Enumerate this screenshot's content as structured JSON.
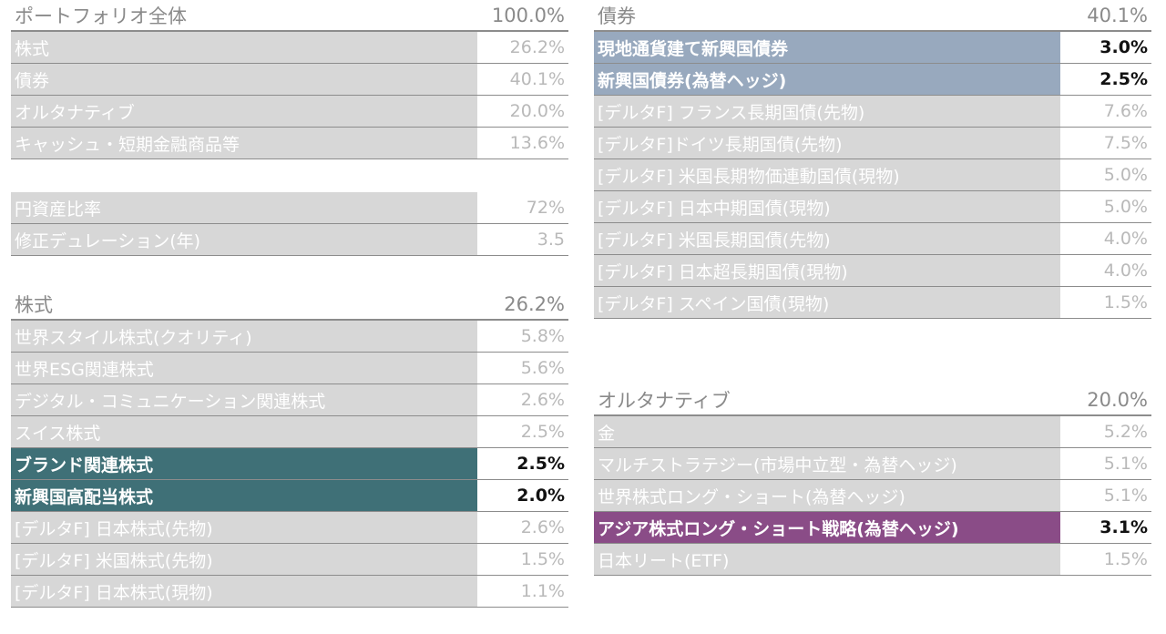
{
  "left": {
    "portfolio": {
      "title": "ポートフォリオ全体",
      "total": "100.0%",
      "rows": [
        {
          "label": "株式",
          "value": "26.2%"
        },
        {
          "label": "債券",
          "value": "40.1%"
        },
        {
          "label": "オルタナティブ",
          "value": "20.0%"
        },
        {
          "label": "キャッシュ・短期金融商品等",
          "value": "13.6%"
        }
      ]
    },
    "metrics": {
      "rows": [
        {
          "label": "円資産比率",
          "value": "72%"
        },
        {
          "label": "修正デュレーション(年)",
          "value": "3.5"
        }
      ]
    },
    "equity": {
      "title": "株式",
      "total": "26.2%",
      "rows": [
        {
          "label": "世界スタイル株式(クオリティ)",
          "value": "5.8%"
        },
        {
          "label": "世界ESG関連株式",
          "value": "5.6%"
        },
        {
          "label": "デジタル・コミュニケーション関連株式",
          "value": "2.6%"
        },
        {
          "label": "スイス株式",
          "value": "2.5%"
        },
        {
          "label": "ブランド関連株式",
          "value": "2.5%"
        },
        {
          "label": "新興国高配当株式",
          "value": "2.0%"
        },
        {
          "label": "[デルタF] 日本株式(先物)",
          "value": "2.6%"
        },
        {
          "label": "[デルタF] 米国株式(先物)",
          "value": "1.5%"
        },
        {
          "label": "[デルタF] 日本株式(現物)",
          "value": "1.1%"
        }
      ]
    }
  },
  "right": {
    "bonds": {
      "title": "債券",
      "total": "40.1%",
      "rows": [
        {
          "label": "現地通貨建て新興国債券",
          "value": "3.0%"
        },
        {
          "label": "新興国債券(為替ヘッジ)",
          "value": "2.5%"
        },
        {
          "label": "[デルタF] フランス長期国債(先物)",
          "value": "7.6%"
        },
        {
          "label": "[デルタF]ドイツ長期国債(先物)",
          "value": "7.5%"
        },
        {
          "label": "[デルタF] 米国長期物価連動国債(現物)",
          "value": "5.0%"
        },
        {
          "label": "[デルタF] 日本中期国債(現物)",
          "value": "5.0%"
        },
        {
          "label": "[デルタF] 米国長期国債(先物)",
          "value": "4.0%"
        },
        {
          "label": "[デルタF] 日本超長期国債(現物)",
          "value": "4.0%"
        },
        {
          "label": "[デルタF] スペイン国債(現物)",
          "value": "1.5%"
        }
      ]
    },
    "alternatives": {
      "title": "オルタナティブ",
      "total": "20.0%",
      "rows": [
        {
          "label": "金",
          "value": "5.2%"
        },
        {
          "label": "マルチストラテジー(市場中立型・為替ヘッジ)",
          "value": "5.1%"
        },
        {
          "label": "世界株式ロング・ショート(為替ヘッジ)",
          "value": "5.1%"
        },
        {
          "label": "アジア株式ロング・ショート戦略(為替ヘッジ)",
          "value": "3.1%"
        },
        {
          "label": "日本リート(ETF)",
          "value": "1.5%"
        }
      ]
    }
  },
  "colors": {
    "teal": "#3f7077",
    "blue": "#98a9be",
    "purple": "#8a4c87",
    "gray": "#d7d7d7"
  }
}
